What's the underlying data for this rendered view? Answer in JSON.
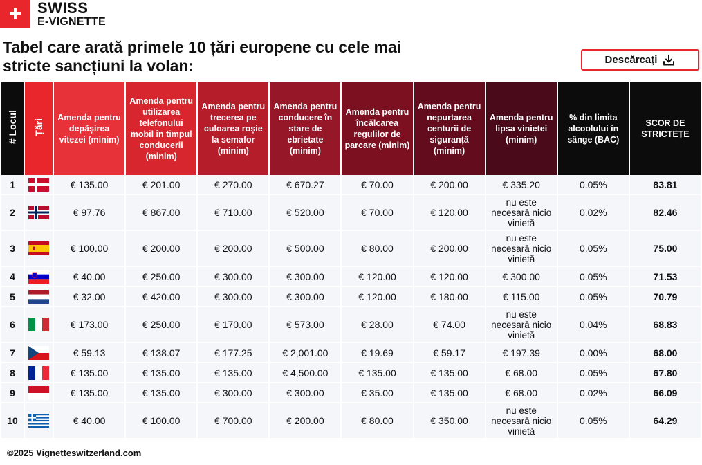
{
  "brand": {
    "line1": "SWISS",
    "line2": "E-VIGNETTE"
  },
  "title": "Tabel care arată primele 10 țări europene cu cele mai stricte sancțiuni la volan:",
  "download_label": "Descărcați",
  "headers": {
    "rank": "# Locul",
    "country": "Țări",
    "speeding": "Amenda pentru depășirea vitezei (minim)",
    "phone": "Amenda pentru utilizarea telefonului mobil în timpul conducerii (minim)",
    "redlight": "Amenda pentru trecerea pe culoarea roșie la semafor (minim)",
    "drunk": "Amenda pentru conducere în stare de ebrietate (minim)",
    "parking": "Amenda pentru încălcarea regulilor de parcare (minim)",
    "seatbelt": "Amenda pentru nepurtarea centurii de siguranță (minim)",
    "vignette": "Amenda pentru lipsa vinietei (minim)",
    "bac": "% din limita alcoolului în sânge (BAC)",
    "score": "SCOR DE STRICTEȚE"
  },
  "colors": {
    "speeding": "#e8323a",
    "phone": "#d8262e",
    "redlight": "#b51d2a",
    "drunk": "#961728",
    "parking": "#7c1021",
    "seatbelt": "#630c1d",
    "vignette": "#4a0a19",
    "dark": "#0c0c0c",
    "country": "#e8262b",
    "accent": "#e8262b"
  },
  "rows": [
    {
      "rank": "1",
      "flag": "denmark",
      "speeding": "€ 135.00",
      "phone": "€ 201.00",
      "redlight": "€ 270.00",
      "drunk": "€ 670.27",
      "parking": "€ 70.00",
      "seatbelt": "€ 200.00",
      "vignette": "€ 335.20",
      "bac": "0.05%",
      "score": "83.81"
    },
    {
      "rank": "2",
      "flag": "norway",
      "speeding": "€ 97.76",
      "phone": "€ 867.00",
      "redlight": "€ 710.00",
      "drunk": "€ 520.00",
      "parking": "€ 70.00",
      "seatbelt": "€ 120.00",
      "vignette": "nu este necesară nicio vinietă",
      "bac": "0.02%",
      "score": "82.46"
    },
    {
      "rank": "3",
      "flag": "spain",
      "speeding": "€ 100.00",
      "phone": "€ 200.00",
      "redlight": "€ 200.00",
      "drunk": "€ 500.00",
      "parking": "€ 80.00",
      "seatbelt": "€ 200.00",
      "vignette": "nu este necesară nicio vinietă",
      "bac": "0.05%",
      "score": "75.00"
    },
    {
      "rank": "4",
      "flag": "slovenia",
      "speeding": "€ 40.00",
      "phone": "€ 250.00",
      "redlight": "€ 300.00",
      "drunk": "€ 300.00",
      "parking": "€ 120.00",
      "seatbelt": "€ 120.00",
      "vignette": "€ 300.00",
      "bac": "0.05%",
      "score": "71.53"
    },
    {
      "rank": "5",
      "flag": "netherlands",
      "speeding": "€ 32.00",
      "phone": "€ 420.00",
      "redlight": "€ 300.00",
      "drunk": "€ 300.00",
      "parking": "€ 120.00",
      "seatbelt": "€ 180.00",
      "vignette": "€ 115.00",
      "bac": "0.05%",
      "score": "70.79"
    },
    {
      "rank": "6",
      "flag": "italy",
      "speeding": "€ 173.00",
      "phone": "€ 250.00",
      "redlight": "€ 170.00",
      "drunk": "€ 573.00",
      "parking": "€ 28.00",
      "seatbelt": "€ 74.00",
      "vignette": "nu este necesară nicio vinietă",
      "bac": "0.04%",
      "score": "68.83"
    },
    {
      "rank": "7",
      "flag": "czechia",
      "speeding": "€ 59.13",
      "phone": "€ 138.07",
      "redlight": "€ 177.25",
      "drunk": "€ 2,001.00",
      "parking": "€ 19.69",
      "seatbelt": "€ 59.17",
      "vignette": "€ 197.39",
      "bac": "0.00%",
      "score": "68.00"
    },
    {
      "rank": "8",
      "flag": "france",
      "speeding": "€ 135.00",
      "phone": "€ 135.00",
      "redlight": "€ 135.00",
      "drunk": "€ 4,500.00",
      "parking": "€ 135.00",
      "seatbelt": "€ 135.00",
      "vignette": "€ 68.00",
      "bac": "0.05%",
      "score": "67.80"
    },
    {
      "rank": "9",
      "flag": "monaco",
      "speeding": "€ 135.00",
      "phone": "€ 135.00",
      "redlight": "€ 300.00",
      "drunk": "€ 300.00",
      "parking": "€ 35.00",
      "seatbelt": "€ 135.00",
      "vignette": "€ 68.00",
      "bac": "0.02%",
      "score": "66.09"
    },
    {
      "rank": "10",
      "flag": "greece",
      "speeding": "€ 40.00",
      "phone": "€ 100.00",
      "redlight": "€ 700.00",
      "drunk": "€ 200.00",
      "parking": "€ 80.00",
      "seatbelt": "€ 350.00",
      "vignette": "nu este necesară nicio vinietă",
      "bac": "0.05%",
      "score": "64.29"
    }
  ],
  "footer": "©2025 Vignetteswitzerland.com"
}
